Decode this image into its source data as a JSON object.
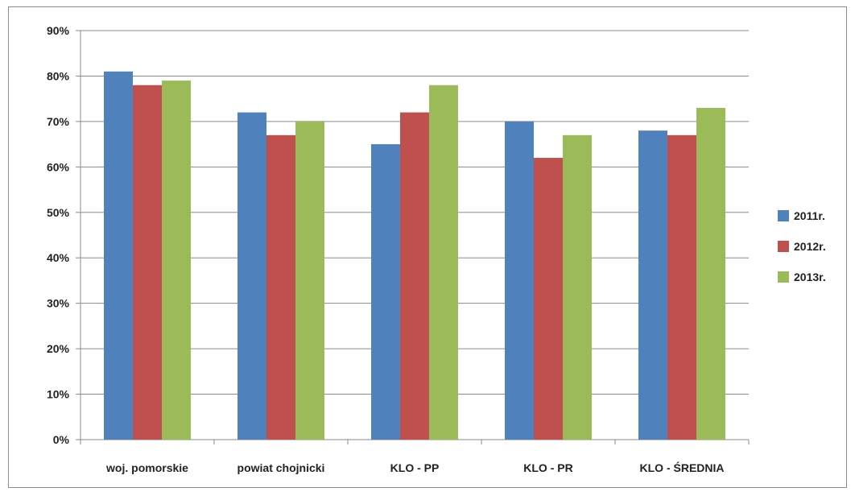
{
  "chart_data": {
    "type": "bar",
    "categories": [
      "woj. pomorskie",
      "powiat chojnicki",
      "KLO - PP",
      "KLO - PR",
      "KLO - ŚREDNIA"
    ],
    "series": [
      {
        "name": "2011r.",
        "color": "#4F81BD",
        "values": [
          81,
          72,
          65,
          70,
          68
        ]
      },
      {
        "name": "2012r.",
        "color": "#C0504D",
        "values": [
          78,
          67,
          72,
          62,
          67
        ]
      },
      {
        "name": "2013r.",
        "color": "#9BBB59",
        "values": [
          79,
          70,
          78,
          67,
          73
        ]
      }
    ],
    "ylim": [
      0,
      90
    ],
    "yticks": [
      "0%",
      "10%",
      "20%",
      "30%",
      "40%",
      "50%",
      "60%",
      "70%",
      "80%",
      "90%"
    ],
    "grid": true,
    "legend": "right"
  }
}
